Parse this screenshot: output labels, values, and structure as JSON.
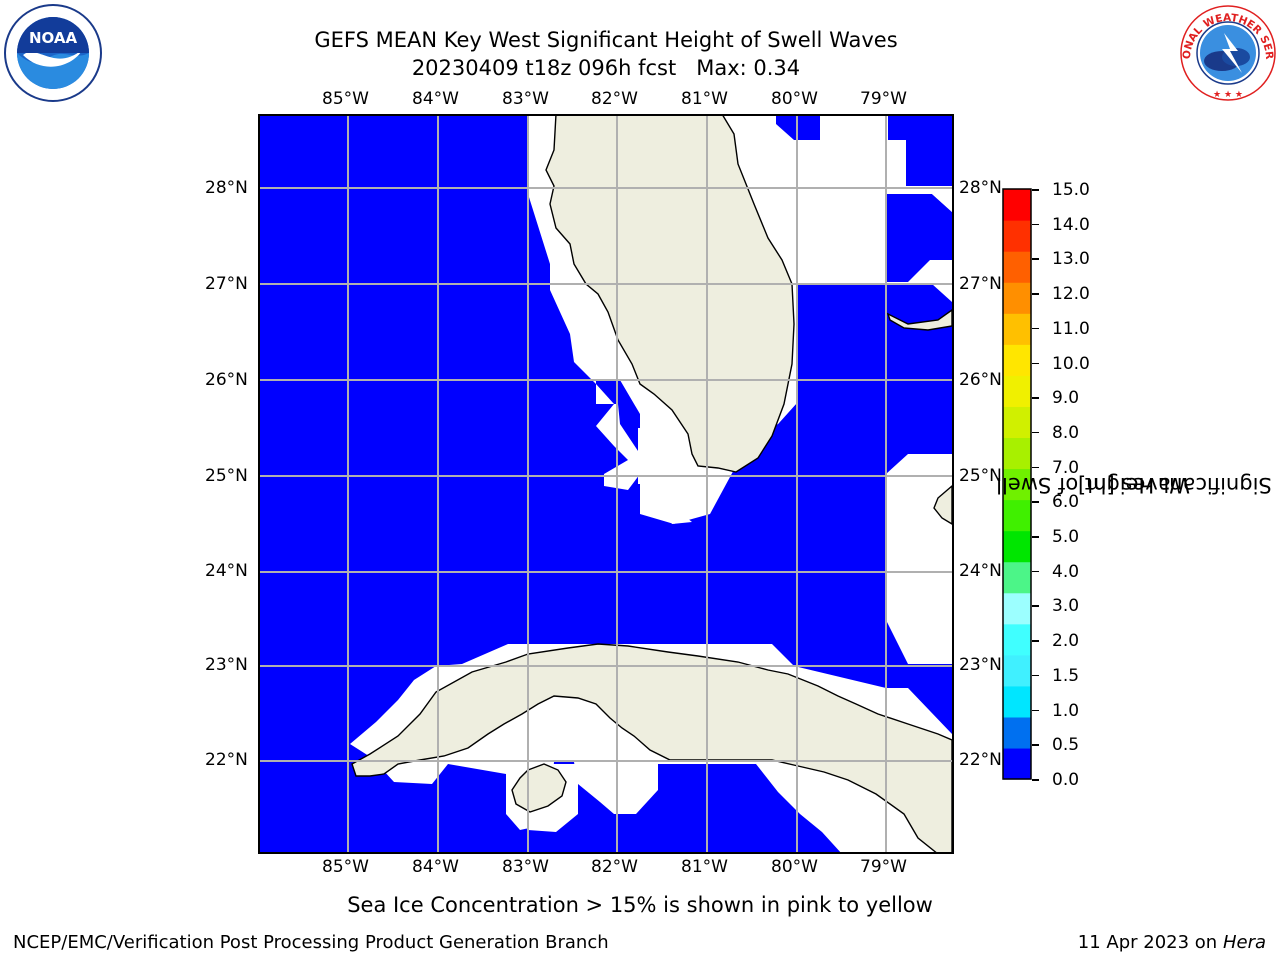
{
  "title": {
    "line1": "GEFS MEAN Key West Significant Height of Swell Waves",
    "line2": "20230409 t18z 096h fcst   Max: 0.34"
  },
  "axes": {
    "lon_labels": [
      "85°W",
      "84°W",
      "83°W",
      "82°W",
      "81°W",
      "80°W",
      "79°W"
    ],
    "lat_labels": [
      "28°N",
      "27°N",
      "26°N",
      "25°N",
      "24°N",
      "23°N",
      "22°N"
    ]
  },
  "colorbar": {
    "label_line1": "Significant Height of Swell",
    "label_line2": "Waves [m]",
    "ticks": [
      "15.0",
      "14.0",
      "13.0",
      "12.0",
      "11.0",
      "10.0",
      "9.0",
      "8.0",
      "7.0",
      "6.0",
      "5.0",
      "4.0",
      "3.0",
      "2.0",
      "1.5",
      "1.0",
      "0.5",
      "0.0"
    ],
    "colors_bottom_to_top": [
      "#0000ff",
      "#0070f0",
      "#00e6ff",
      "#40f0ff",
      "#40ffff",
      "#9cffff",
      "#4cf588",
      "#00e600",
      "#40f000",
      "#70f000",
      "#a8f000",
      "#d0f000",
      "#f0f000",
      "#ffe600",
      "#ffc000",
      "#ff8f00",
      "#ff6000",
      "#ff3000",
      "#ff0000"
    ]
  },
  "map_colors": {
    "ocean": "#0000ff",
    "land": "#eeeedf",
    "nodata": "#ffffff",
    "grid": "#b0b0b0"
  },
  "logos": {
    "left_text": "NOAA",
    "right_text": "NATIONAL WEATHER SERVICE"
  },
  "note": "Sea Ice Concentration > 15% is shown in pink to yellow",
  "footer": {
    "left": "NCEP/EMC/Verification Post Processing Product Generation Branch",
    "right_date": "11 Apr 2023 on ",
    "right_machine": "Hera"
  }
}
